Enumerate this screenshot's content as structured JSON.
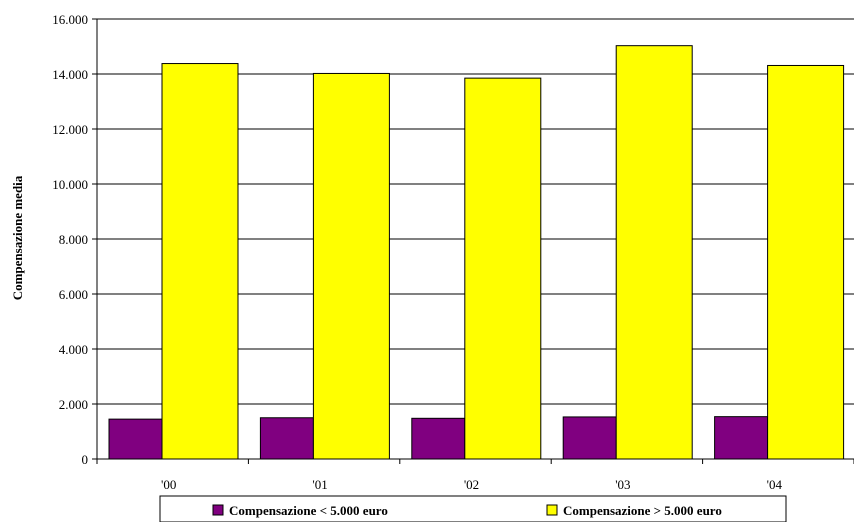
{
  "chart_data": {
    "type": "bar",
    "title": "",
    "xlabel": "",
    "ylabel": "Compensazione media",
    "categories": [
      "'00",
      "'01",
      "'02",
      "'03",
      "'04"
    ],
    "series": [
      {
        "name": "Compensazione < 5.000 euro",
        "color": "#800080",
        "values": [
          1450,
          1500,
          1480,
          1530,
          1540
        ]
      },
      {
        "name": "Compensazione > 5.000 euro",
        "color": "#ffff00",
        "values": [
          14380,
          14020,
          13850,
          15030,
          14310
        ]
      }
    ],
    "ylim": [
      0,
      16000
    ],
    "yticks": [
      "0",
      "2.000",
      "4.000",
      "6.000",
      "8.000",
      "10.000",
      "12.000",
      "14.000",
      "16.000"
    ],
    "grid": true,
    "legend_position": "bottom"
  }
}
